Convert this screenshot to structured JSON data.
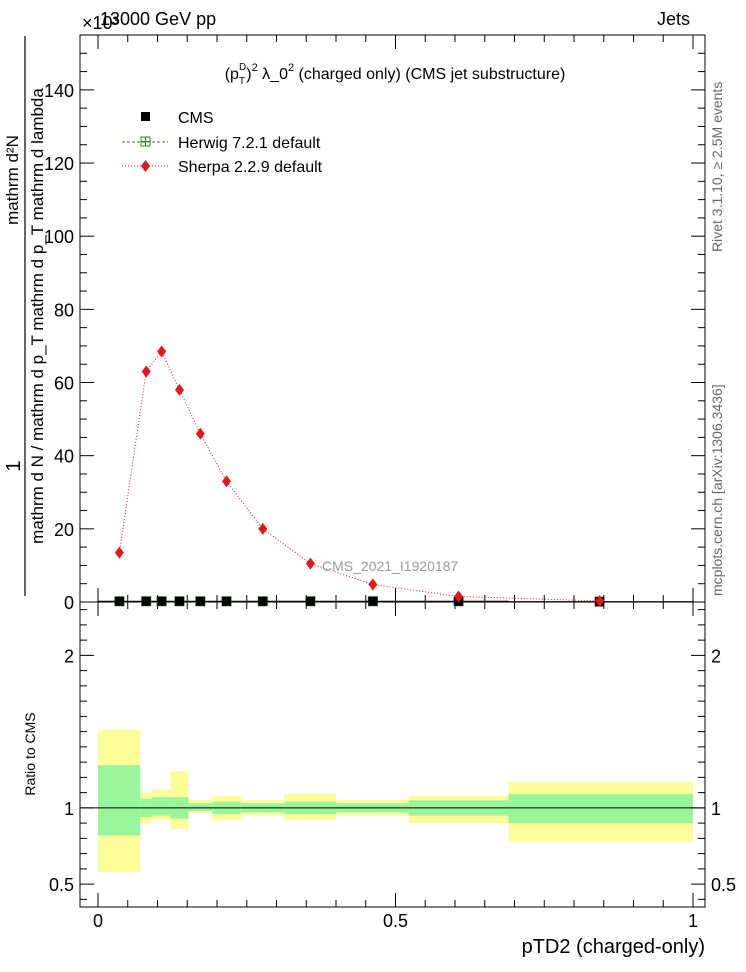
{
  "header": {
    "left": "13000 GeV pp",
    "right": "Jets",
    "exponent": "×10³"
  },
  "side_labels": {
    "rivet": "Rivet 3.1.10, ≥ 2.5M events",
    "mcplots": "mcplots.cern.ch [arXiv:1306.3436]"
  },
  "chart_data": [
    {
      "type": "line",
      "title": "(pTD)² λ_0² (charged only) (CMS jet substructure)",
      "title_parts": {
        "base": "(p",
        "sub": "T",
        "sup": "D",
        "rest_sup": "2",
        "rest": " λ_0",
        "rest2_sup": "2",
        "tail": " (charged only) (CMS jet substructure)"
      },
      "ylabel_top": "1",
      "ylabel_main": "mathrm d N / mathrm d p_T mathrm d p_T mathrm d lambda",
      "ylabel_num": "mathrm d²N",
      "ylabel_den": "mathrm d N / mathrm d p_T mathrm d p_T mathrm d lambda",
      "xlabel": "pTD2 (charged-only)",
      "y_exponent": "×10³",
      "xlim": [
        0,
        1.02
      ],
      "ylim": [
        0,
        155
      ],
      "yticks": [
        0,
        20,
        40,
        60,
        80,
        100,
        120,
        140
      ],
      "xticks": [
        0,
        0.5,
        1
      ],
      "xtick_labels": [
        "0",
        "0.5",
        "1"
      ],
      "watermark": "CMS_2021_I1920187",
      "legend_position": "top-left",
      "series": [
        {
          "name": "CMS",
          "marker": "square",
          "color": "#000000",
          "x": [
            0.036,
            0.081,
            0.107,
            0.137,
            0.172,
            0.216,
            0.277,
            0.357,
            0.462,
            0.606,
            0.843
          ],
          "y": [
            0.2,
            0.2,
            0.2,
            0.2,
            0.2,
            0.2,
            0.2,
            0.2,
            0.2,
            0.2,
            0.1
          ],
          "xerr_edges": [
            [
              0.0,
              0.071
            ],
            [
              0.071,
              0.09
            ],
            [
              0.09,
              0.122
            ],
            [
              0.122,
              0.152
            ],
            [
              0.152,
              0.192
            ],
            [
              0.192,
              0.24
            ],
            [
              0.24,
              0.313
            ],
            [
              0.313,
              0.4
            ],
            [
              0.4,
              0.522
            ],
            [
              0.522,
              0.69
            ],
            [
              0.69,
              1.0
            ]
          ]
        },
        {
          "name": "Herwig 7.2.1 default",
          "marker": "open-square",
          "color": "#2f7f1f",
          "line": "dashed",
          "x": [
            0.036,
            0.081,
            0.107,
            0.137,
            0.172,
            0.216,
            0.277,
            0.357,
            0.462,
            0.606,
            0.843
          ],
          "y": [
            0.2,
            0.2,
            0.2,
            0.2,
            0.2,
            0.2,
            0.2,
            0.2,
            0.2,
            0.2,
            0.1
          ]
        },
        {
          "name": "Sherpa 2.2.9 default",
          "marker": "diamond",
          "color": "#e8161b",
          "line": "dotted",
          "x": [
            0.036,
            0.081,
            0.107,
            0.137,
            0.172,
            0.216,
            0.277,
            0.357,
            0.462,
            0.606,
            0.843
          ],
          "y": [
            13.5,
            63,
            68.5,
            58,
            46,
            33,
            20,
            10.5,
            4.8,
            1.5,
            0.3
          ]
        }
      ]
    },
    {
      "type": "area",
      "ylabel": "Ratio to CMS",
      "xlim": [
        0,
        1.02
      ],
      "ylim": [
        0.35,
        2.35
      ],
      "yticks": [
        0.5,
        1,
        2
      ],
      "ytick_labels": [
        "0.5",
        "1",
        "2"
      ],
      "reference_line": 1,
      "bands": {
        "inner_color": "#99f59a",
        "outer_color": "#fdfd98",
        "bins": [
          {
            "x0": 0.0,
            "x1": 0.071,
            "inner": [
              0.82,
              1.28
            ],
            "outer": [
              0.58,
              1.51
            ]
          },
          {
            "x0": 0.071,
            "x1": 0.09,
            "inner": [
              0.94,
              1.06
            ],
            "outer": [
              0.9,
              1.1
            ]
          },
          {
            "x0": 0.09,
            "x1": 0.122,
            "inner": [
              0.95,
              1.07
            ],
            "outer": [
              0.92,
              1.12
            ]
          },
          {
            "x0": 0.122,
            "x1": 0.152,
            "inner": [
              0.93,
              1.07
            ],
            "outer": [
              0.86,
              1.24
            ]
          },
          {
            "x0": 0.152,
            "x1": 0.192,
            "inner": [
              0.98,
              1.03
            ],
            "outer": [
              0.97,
              1.05
            ]
          },
          {
            "x0": 0.192,
            "x1": 0.24,
            "inner": [
              0.96,
              1.04
            ],
            "outer": [
              0.92,
              1.08
            ]
          },
          {
            "x0": 0.24,
            "x1": 0.313,
            "inner": [
              0.97,
              1.03
            ],
            "outer": [
              0.95,
              1.05
            ]
          },
          {
            "x0": 0.313,
            "x1": 0.4,
            "inner": [
              0.96,
              1.04
            ],
            "outer": [
              0.92,
              1.09
            ]
          },
          {
            "x0": 0.4,
            "x1": 0.522,
            "inner": [
              0.97,
              1.03
            ],
            "outer": [
              0.95,
              1.05
            ]
          },
          {
            "x0": 0.522,
            "x1": 0.69,
            "inner": [
              0.95,
              1.05
            ],
            "outer": [
              0.9,
              1.08
            ]
          },
          {
            "x0": 0.69,
            "x1": 1.0,
            "inner": [
              0.9,
              1.09
            ],
            "outer": [
              0.78,
              1.17
            ]
          }
        ]
      }
    }
  ]
}
